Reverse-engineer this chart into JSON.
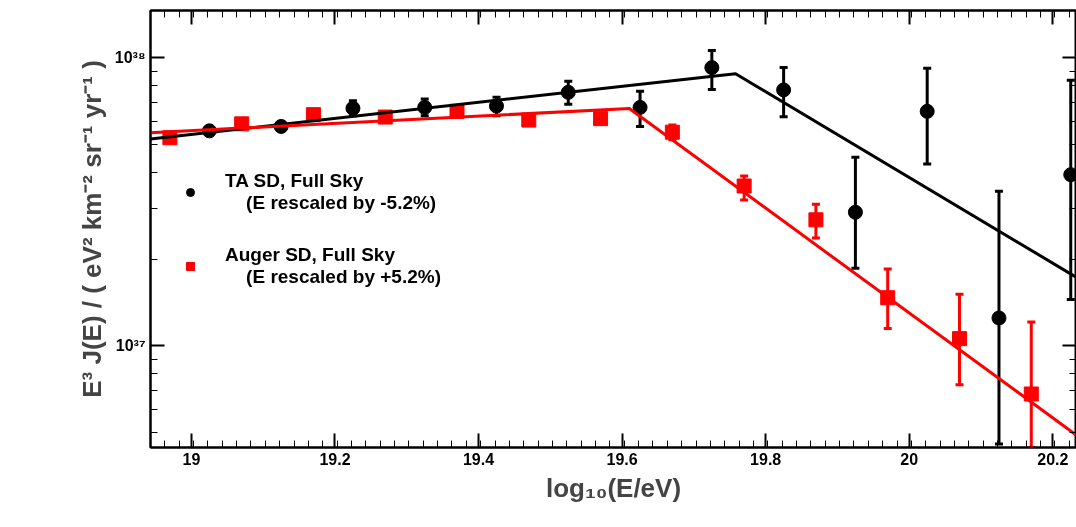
{
  "chart_data": {
    "type": "scatter",
    "xlabel": "log₁₀(E/eV)",
    "ylabel": "E³ J(E) / ( eV² km⁻² sr⁻¹ yr⁻¹ )",
    "log": "y",
    "grid": false,
    "legend": "left",
    "xlim": [
      18.943,
      20.233
    ],
    "xticks": [
      19,
      19.2,
      19.4,
      19.6,
      19.8,
      20,
      20.2
    ],
    "ylim": [
      4.44e+36,
      1.46e+38
    ],
    "yticks": [
      {
        "value": 1e+37,
        "label": "10³⁷"
      },
      {
        "value": 1e+38,
        "label": "10³⁸"
      }
    ],
    "series": [
      {
        "name": "TA SD, Full Sky\n    (E rescaled by -5.2%)",
        "color": "#000000",
        "type": "scatter",
        "marker": "circle",
        "x": [
          19.025,
          19.125,
          19.225,
          19.325,
          19.425,
          19.525,
          19.625,
          19.725,
          19.825,
          19.925,
          20.025,
          20.125,
          20.225
        ],
        "values": [
          5.58e+37,
          5.78e+37,
          6.68e+37,
          6.73e+37,
          6.8e+37,
          7.59e+37,
          6.73e+37,
          9.25e+37,
          7.74e+37,
          2.91e+37,
          6.52e+37,
          1.25e+37,
          3.93e+37
        ],
        "errors": [
          null,
          null,
          [
            6.3e+37,
            7.1e+37
          ],
          [
            6.3e+37,
            7.2e+37
          ],
          [
            6.3e+37,
            7.3e+37
          ],
          [
            6.9e+37,
            8.3e+37
          ],
          [
            5.78e+37,
            7.66e+37
          ],
          [
            7.76e+37,
            1.06e+38
          ],
          [
            6.25e+37,
            9.25e+37
          ],
          [
            1.86e+37,
            4.52e+37
          ],
          [
            4.28e+37,
            9.2e+37
          ],
          [
            4.57e+36,
            3.44e+37
          ],
          [
            1.45e+37,
            8.36e+37
          ]
        ]
      },
      {
        "name": "Auger SD, Full Sky\n    (E rescaled by +5.2%)",
        "color": "#ff0000",
        "type": "scatter",
        "marker": "square",
        "x": [
          18.97,
          19.07,
          19.17,
          19.27,
          19.37,
          19.47,
          19.57,
          19.67,
          19.77,
          19.87,
          19.97,
          20.07,
          20.17
        ],
        "values": [
          5.28e+37,
          5.9e+37,
          6.35e+37,
          6.23e+37,
          6.52e+37,
          6.08e+37,
          6.15e+37,
          5.52e+37,
          3.59e+37,
          2.74e+37,
          1.47e+37,
          1.06e+37,
          6.81e+36
        ],
        "errors": [
          null,
          null,
          null,
          null,
          null,
          null,
          null,
          [
            5.2e+37,
            5.85e+37
          ],
          [
            3.21e+37,
            3.89e+37
          ],
          [
            2.37e+37,
            3.1e+37
          ],
          [
            1.15e+37,
            1.85e+37
          ],
          [
            7.33e+36,
            1.51e+37
          ],
          [
            4.44e+36,
            1.21e+37
          ]
        ]
      },
      {
        "color": "#000000",
        "type": "line",
        "marker": "none",
        "x": [
          18.943,
          19.758,
          20.233
        ],
        "values": [
          5.23e+37,
          8.81e+37,
          1.73e+37
        ]
      },
      {
        "color": "#ff0000",
        "type": "line",
        "marker": "none",
        "x": [
          18.943,
          19.61,
          20.233
        ],
        "values": [
          5.5e+37,
          6.67e+37,
          4.9e+36
        ]
      }
    ]
  }
}
